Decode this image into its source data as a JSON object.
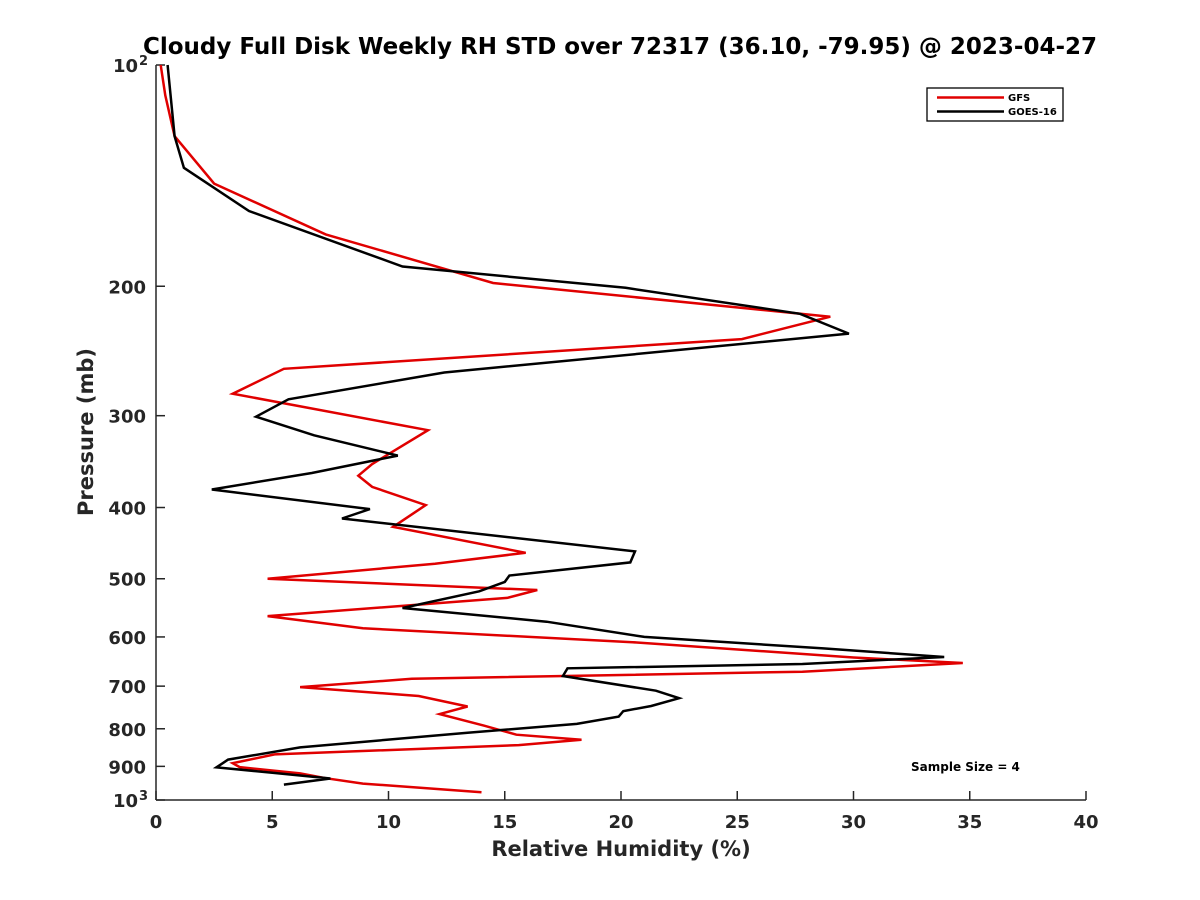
{
  "chart_data": {
    "type": "line",
    "title": "Cloudy Full Disk Weekly RH STD over 72317 (36.10, -79.95) @ 2023-04-27",
    "xlabel": "Relative Humidity (%)",
    "ylabel": "Pressure (mb)",
    "xlim": [
      0,
      40
    ],
    "ylim": [
      100,
      1000
    ],
    "y_scale": "log",
    "y_reversed": true,
    "x_ticks": [
      "0",
      "5",
      "10",
      "15",
      "20",
      "25",
      "30",
      "35",
      "40"
    ],
    "y_ticks": [
      {
        "value": 100,
        "label": "10",
        "sup": "2"
      },
      {
        "value": 200,
        "label": "200",
        "sup": ""
      },
      {
        "value": 300,
        "label": "300",
        "sup": ""
      },
      {
        "value": 400,
        "label": "400",
        "sup": ""
      },
      {
        "value": 500,
        "label": "500",
        "sup": ""
      },
      {
        "value": 600,
        "label": "600",
        "sup": ""
      },
      {
        "value": 700,
        "label": "700",
        "sup": ""
      },
      {
        "value": 800,
        "label": "800",
        "sup": ""
      },
      {
        "value": 900,
        "label": "900",
        "sup": ""
      },
      {
        "value": 1000,
        "label": "10",
        "sup": "3"
      }
    ],
    "grid": false,
    "legend_position": "top-right",
    "annotation": "Sample Size = 4",
    "series": [
      {
        "name": "GFS",
        "color": "#e00000",
        "points": [
          [
            0.2,
            100
          ],
          [
            0.4,
            110
          ],
          [
            0.8,
            125
          ],
          [
            2.5,
            145
          ],
          [
            7.3,
            170
          ],
          [
            14.5,
            198
          ],
          [
            29.0,
            220
          ],
          [
            25.2,
            236
          ],
          [
            5.5,
            259
          ],
          [
            3.3,
            280
          ],
          [
            11.7,
            314
          ],
          [
            9.3,
            349
          ],
          [
            8.7,
            362
          ],
          [
            9.3,
            375
          ],
          [
            11.6,
            397
          ],
          [
            10.2,
            425
          ],
          [
            15.9,
            461
          ],
          [
            12.0,
            477
          ],
          [
            4.8,
            500
          ],
          [
            16.4,
            518
          ],
          [
            15.1,
            531
          ],
          [
            4.8,
            562
          ],
          [
            8.9,
            584
          ],
          [
            20.5,
            610
          ],
          [
            30.0,
            640
          ],
          [
            34.7,
            651
          ],
          [
            27.8,
            669
          ],
          [
            11.0,
            684
          ],
          [
            6.2,
            702
          ],
          [
            11.3,
            722
          ],
          [
            13.4,
            746
          ],
          [
            12.2,
            764
          ],
          [
            14.1,
            792
          ],
          [
            15.5,
            815
          ],
          [
            18.3,
            828
          ],
          [
            15.6,
            842
          ],
          [
            5.1,
            867
          ],
          [
            3.3,
            891
          ],
          [
            3.6,
            902
          ],
          [
            6.2,
            920
          ],
          [
            7.3,
            934
          ],
          [
            8.9,
            950
          ],
          [
            14.0,
            976
          ]
        ]
      },
      {
        "name": "GOES-16",
        "color": "#000000",
        "points": [
          [
            0.5,
            100
          ],
          [
            0.8,
            125
          ],
          [
            1.2,
            138
          ],
          [
            4.0,
            158
          ],
          [
            10.6,
            188
          ],
          [
            20.2,
            201
          ],
          [
            27.7,
            218
          ],
          [
            29.8,
            232
          ],
          [
            12.4,
            262
          ],
          [
            5.7,
            285
          ],
          [
            4.3,
            301
          ],
          [
            6.8,
            319
          ],
          [
            10.4,
            340
          ],
          [
            6.7,
            359
          ],
          [
            2.4,
            378
          ],
          [
            9.2,
            402
          ],
          [
            8.0,
            414
          ],
          [
            20.6,
            459
          ],
          [
            20.4,
            475
          ],
          [
            15.2,
            495
          ],
          [
            15.0,
            505
          ],
          [
            13.9,
            520
          ],
          [
            10.6,
            548
          ],
          [
            16.8,
            572
          ],
          [
            21.0,
            600
          ],
          [
            28.7,
            622
          ],
          [
            33.9,
            639
          ],
          [
            27.8,
            653
          ],
          [
            17.7,
            662
          ],
          [
            17.5,
            678
          ],
          [
            21.5,
            710
          ],
          [
            22.5,
            727
          ],
          [
            21.3,
            745
          ],
          [
            20.1,
            757
          ],
          [
            19.9,
            770
          ],
          [
            18.1,
            788
          ],
          [
            13.4,
            810
          ],
          [
            6.2,
            848
          ],
          [
            3.1,
            881
          ],
          [
            2.6,
            903
          ],
          [
            5.0,
            918
          ],
          [
            7.5,
            935
          ],
          [
            5.5,
            953
          ]
        ]
      }
    ]
  }
}
